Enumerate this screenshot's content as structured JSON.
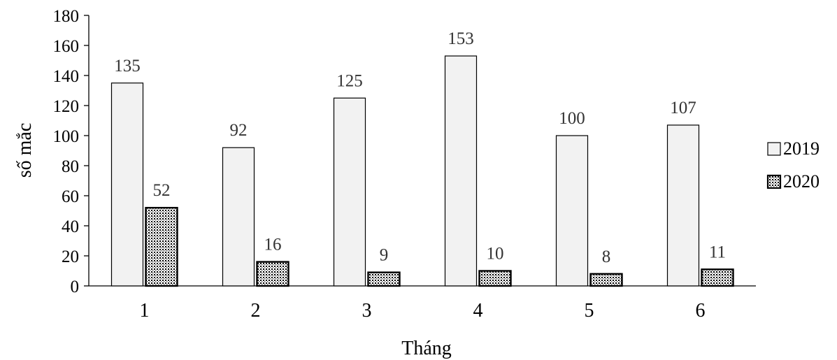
{
  "chart_data": {
    "type": "bar",
    "categories": [
      "1",
      "2",
      "3",
      "4",
      "5",
      "6"
    ],
    "series": [
      {
        "name": "2019",
        "values": [
          135,
          92,
          125,
          153,
          100,
          107
        ],
        "fill": "#f2f2f2",
        "pattern": "solid"
      },
      {
        "name": "2020",
        "values": [
          52,
          16,
          9,
          10,
          8,
          11
        ],
        "fill": "#ffffff",
        "pattern": "dots"
      }
    ],
    "data_labels": [
      [
        "135",
        "92",
        "125",
        "153",
        "100",
        "107"
      ],
      [
        "52",
        "16",
        "9",
        "10",
        "8",
        "11"
      ]
    ],
    "yticks": [
      0,
      20,
      40,
      60,
      80,
      100,
      120,
      140,
      160,
      180
    ],
    "xlabel": "Tháng",
    "ylabel": "số mắc",
    "ylim": [
      0,
      180
    ],
    "grid": false,
    "legend_position": "right",
    "colors": {
      "axis": "#000000",
      "bar_stroke": "#000000",
      "label": "#333333"
    }
  }
}
